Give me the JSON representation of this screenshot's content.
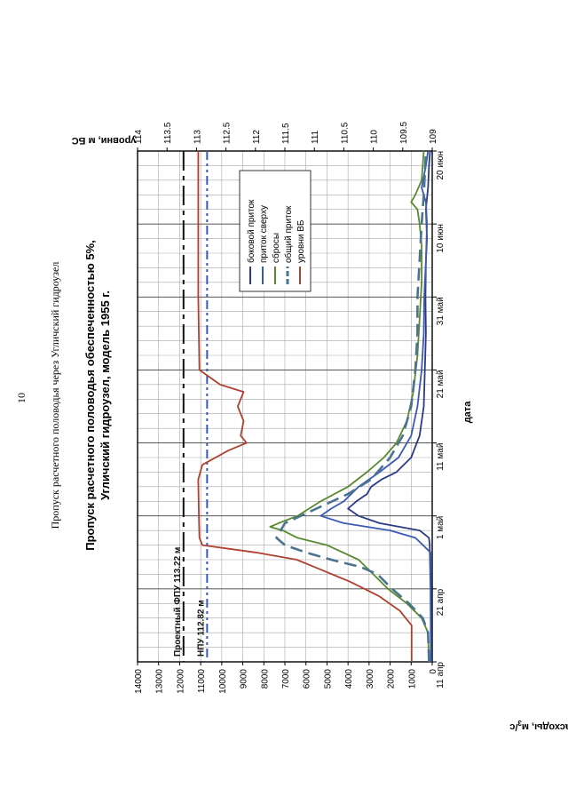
{
  "page": {
    "number": "10",
    "header": "Пропуск расчетного половодья через Угличский гидроузел"
  },
  "chart_data": {
    "type": "line",
    "title_line1": "Пропуск расчетного половодья обеспеченностью 5%,",
    "title_line2": "Угличский гидроузел, модель 1955 г.",
    "xlabel": "дата",
    "ylabel_left_main": "расходы, м",
    "ylabel_left_sup": "3",
    "ylabel_left_tail": "/с",
    "ylabel_right": "уровни, м БС",
    "x_ticks": [
      "11 апр",
      "21 апр",
      "1 май",
      "11 май",
      "21 май",
      "31 май",
      "10 июн",
      "20 июн"
    ],
    "xlim_days": [
      0,
      70
    ],
    "y_left_ticks": [
      "0",
      "1000",
      "2000",
      "3000",
      "4000",
      "5000",
      "6000",
      "7000",
      "8000",
      "9000",
      "10000",
      "11000",
      "12000",
      "13000",
      "14000"
    ],
    "ylim_left": [
      0,
      14000
    ],
    "y_right_ticks": [
      "109",
      "109.5",
      "110",
      "110.5",
      "111",
      "111.5",
      "112",
      "112.5",
      "113",
      "113.5",
      "114"
    ],
    "ylim_right": [
      109,
      114
    ],
    "grid": true,
    "legend_position": "center",
    "series": [
      {
        "name": "боковой приток",
        "color": "#2b3a84",
        "dash": "",
        "axis": "left",
        "points": [
          [
            0,
            60
          ],
          [
            10,
            80
          ],
          [
            16,
            120
          ],
          [
            17,
            150
          ],
          [
            18,
            600
          ],
          [
            19,
            2500
          ],
          [
            20,
            3500
          ],
          [
            21,
            4000
          ],
          [
            22,
            3600
          ],
          [
            23,
            3100
          ],
          [
            24,
            2900
          ],
          [
            25,
            2400
          ],
          [
            26,
            1700
          ],
          [
            28,
            1000
          ],
          [
            31,
            600
          ],
          [
            35,
            400
          ],
          [
            40,
            350
          ],
          [
            45,
            300
          ],
          [
            50,
            320
          ],
          [
            55,
            300
          ],
          [
            58,
            250
          ],
          [
            62,
            300
          ],
          [
            65,
            200
          ],
          [
            68,
            150
          ],
          [
            70,
            100
          ]
        ]
      },
      {
        "name": "приток сверху",
        "color": "#3a5bb5",
        "dash": "",
        "axis": "left",
        "points": [
          [
            0,
            50
          ],
          [
            10,
            60
          ],
          [
            15,
            80
          ],
          [
            17,
            800
          ],
          [
            18,
            2000
          ],
          [
            19,
            4200
          ],
          [
            20,
            5300
          ],
          [
            21,
            4800
          ],
          [
            22,
            4200
          ],
          [
            24,
            3500
          ],
          [
            26,
            2500
          ],
          [
            28,
            1600
          ],
          [
            31,
            1000
          ],
          [
            35,
            700
          ],
          [
            40,
            500
          ],
          [
            45,
            400
          ],
          [
            50,
            380
          ],
          [
            55,
            300
          ],
          [
            60,
            250
          ],
          [
            63,
            300
          ],
          [
            65,
            500
          ],
          [
            68,
            300
          ],
          [
            70,
            200
          ]
        ]
      },
      {
        "name": "сбросы",
        "color": "#5a8a30",
        "dash": "",
        "axis": "left",
        "points": [
          [
            0,
            150
          ],
          [
            4,
            200
          ],
          [
            6,
            500
          ],
          [
            8,
            1200
          ],
          [
            10,
            2100
          ],
          [
            12,
            2800
          ],
          [
            14,
            3500
          ],
          [
            16,
            5000
          ],
          [
            17,
            6400
          ],
          [
            18,
            7100
          ],
          [
            18.5,
            7700
          ],
          [
            19,
            7300
          ],
          [
            20,
            6400
          ],
          [
            22,
            5300
          ],
          [
            24,
            4000
          ],
          [
            26,
            3100
          ],
          [
            28,
            2300
          ],
          [
            30,
            1700
          ],
          [
            33,
            1200
          ],
          [
            37,
            900
          ],
          [
            42,
            700
          ],
          [
            47,
            600
          ],
          [
            52,
            500
          ],
          [
            57,
            500
          ],
          [
            60,
            600
          ],
          [
            62,
            700
          ],
          [
            63,
            1000
          ],
          [
            64,
            800
          ],
          [
            66,
            500
          ],
          [
            70,
            400
          ]
        ]
      },
      {
        "name": "общий приток",
        "color": "#4a7390",
        "dash": "14 7",
        "axis": "left",
        "points": [
          [
            0,
            150
          ],
          [
            4,
            200
          ],
          [
            6,
            450
          ],
          [
            8,
            1100
          ],
          [
            10,
            1900
          ],
          [
            12,
            2600
          ],
          [
            13,
            3400
          ],
          [
            14,
            4800
          ],
          [
            15,
            6000
          ],
          [
            16,
            7000
          ],
          [
            17,
            7400
          ],
          [
            18,
            7200
          ],
          [
            19,
            7000
          ],
          [
            21,
            5500
          ],
          [
            23,
            4000
          ],
          [
            25,
            2900
          ],
          [
            28,
            2000
          ],
          [
            31,
            1400
          ],
          [
            35,
            1000
          ],
          [
            40,
            800
          ],
          [
            45,
            700
          ],
          [
            50,
            700
          ],
          [
            55,
            600
          ],
          [
            60,
            500
          ],
          [
            64,
            400
          ],
          [
            70,
            300
          ]
        ]
      },
      {
        "name": "уровни ВБ",
        "color": "#b04030",
        "dash": "",
        "axis": "right",
        "points": [
          [
            0,
            109.35
          ],
          [
            5,
            109.35
          ],
          [
            7,
            109.55
          ],
          [
            9,
            109.9
          ],
          [
            11,
            110.4
          ],
          [
            13,
            111.0
          ],
          [
            14,
            111.3
          ],
          [
            15,
            112.0
          ],
          [
            16,
            112.9
          ],
          [
            17,
            112.95
          ],
          [
            20,
            112.96
          ],
          [
            25,
            112.97
          ],
          [
            27,
            112.9
          ],
          [
            29,
            112.45
          ],
          [
            30,
            112.15
          ],
          [
            31,
            112.25
          ],
          [
            33,
            112.2
          ],
          [
            35,
            112.3
          ],
          [
            37,
            112.2
          ],
          [
            38,
            112.6
          ],
          [
            40,
            112.95
          ],
          [
            50,
            112.97
          ],
          [
            60,
            112.97
          ],
          [
            70,
            112.97
          ]
        ]
      }
    ],
    "reference_lines": [
      {
        "label": "Проектный ФПУ 113.22 м",
        "value": 113.22,
        "axis": "right",
        "color": "#111111",
        "dash": "22 6 5 6"
      },
      {
        "label": "НПУ 112.82 м",
        "value": 112.82,
        "axis": "right",
        "color": "#3a5bb5",
        "dash": "10 4 3 4 3 4"
      }
    ]
  }
}
